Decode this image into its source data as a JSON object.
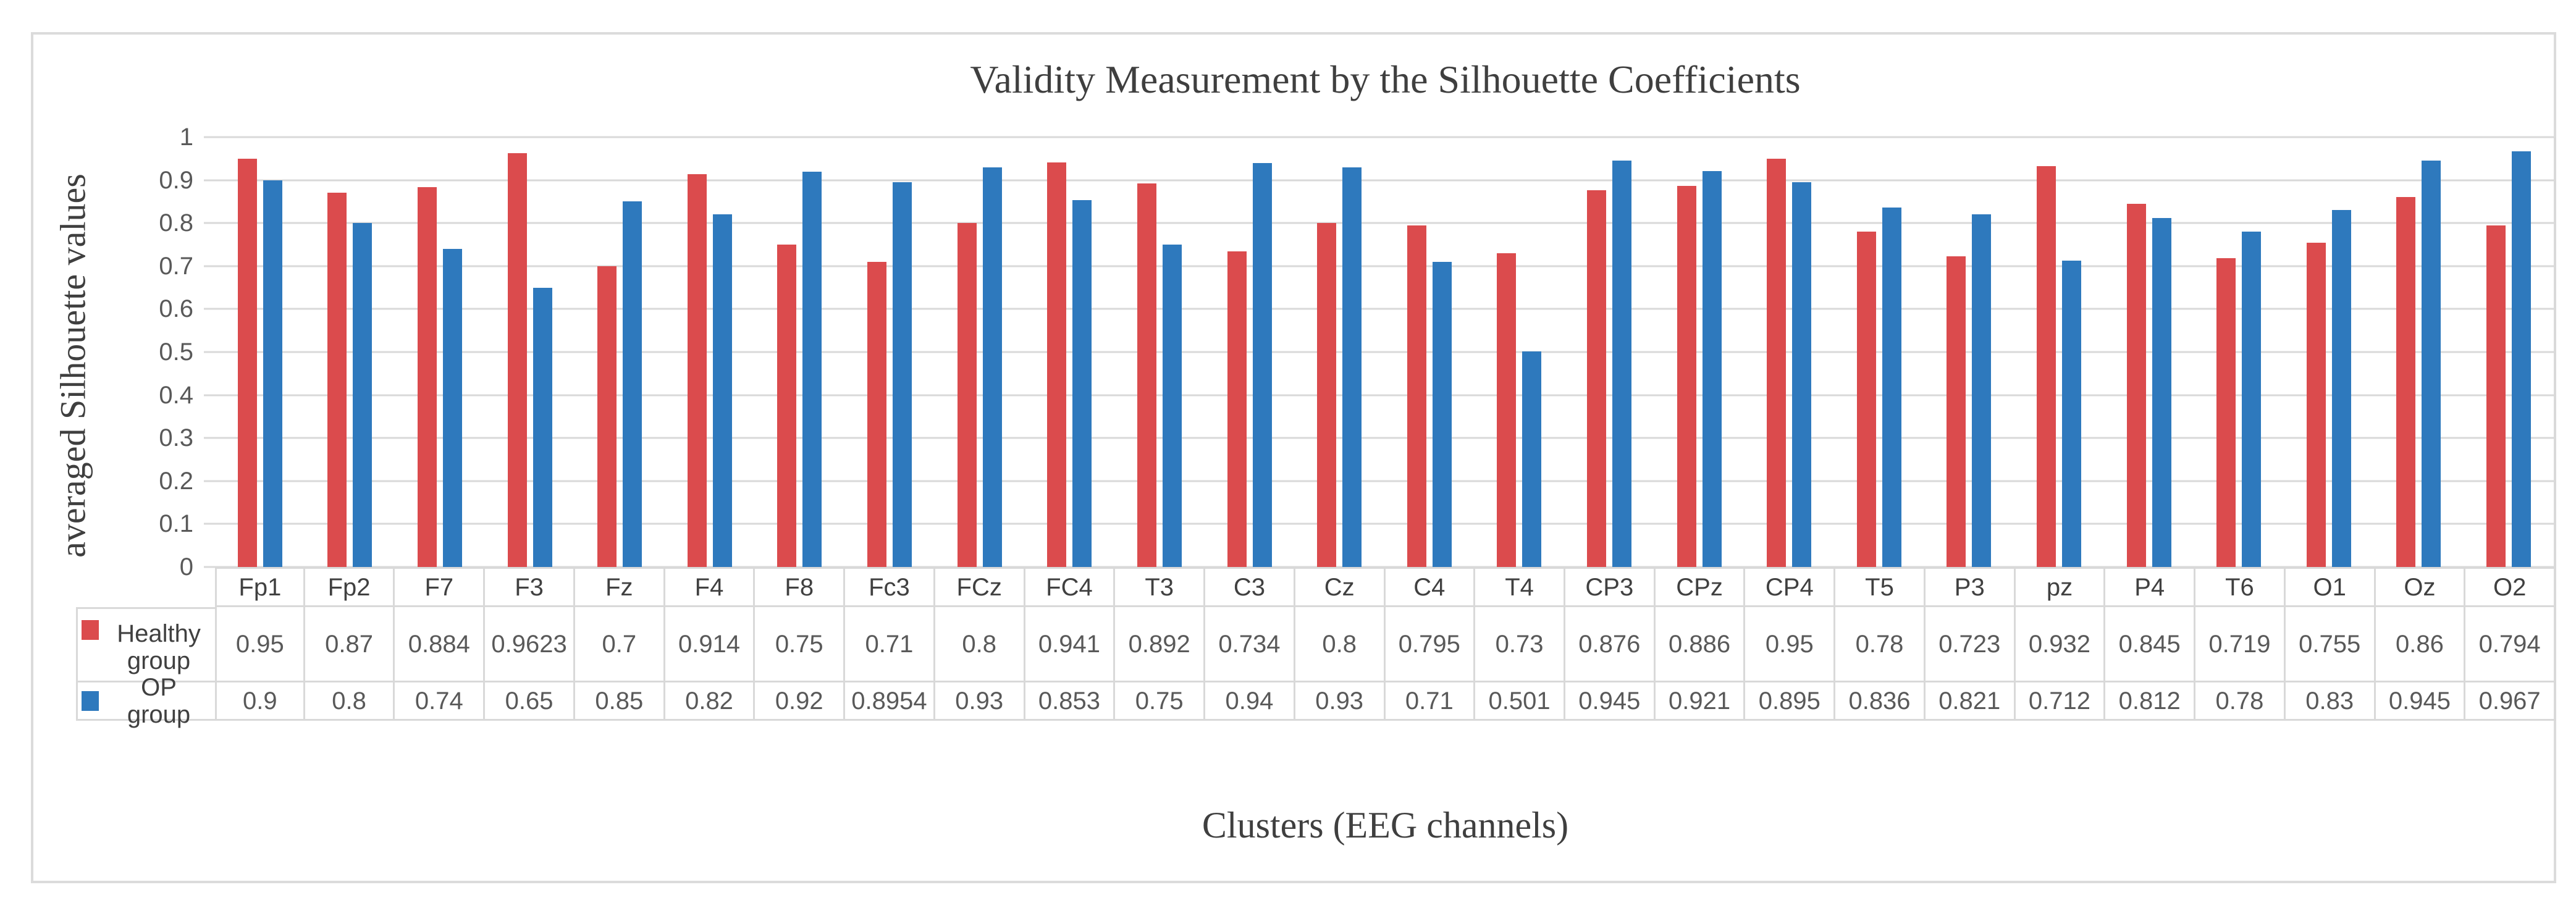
{
  "chart_data": {
    "type": "bar",
    "title": "Validity Measurement by the Silhouette Coefficients",
    "xlabel": "Clusters (EEG channels)",
    "ylabel": "averaged  Silhouette values",
    "ylim": [
      0,
      1
    ],
    "yticks": [
      "0",
      "0.1",
      "0.2",
      "0.3",
      "0.4",
      "0.5",
      "0.6",
      "0.7",
      "0.8",
      "0.9",
      "1"
    ],
    "grid": true,
    "legend_position": "table-left",
    "categories": [
      "Fp1",
      "Fp2",
      "F7",
      "F3",
      "Fz",
      "F4",
      "F8",
      "Fc3",
      "FCz",
      "FC4",
      "T3",
      "C3",
      "Cz",
      "C4",
      "T4",
      "CP3",
      "CPz",
      "CP4",
      "T5",
      "P3",
      "pz",
      "P4",
      "T6",
      "O1",
      "Oz",
      "O2"
    ],
    "series": [
      {
        "name": "Healthy group",
        "color": "#DB4B4D",
        "values": [
          0.95,
          0.87,
          0.884,
          0.9623,
          0.7,
          0.914,
          0.75,
          0.71,
          0.8,
          0.941,
          0.892,
          0.734,
          0.8,
          0.795,
          0.73,
          0.876,
          0.886,
          0.95,
          0.78,
          0.723,
          0.932,
          0.845,
          0.719,
          0.755,
          0.86,
          0.794
        ]
      },
      {
        "name": "OP group",
        "color": "#2E79BD",
        "values": [
          0.9,
          0.8,
          0.74,
          0.65,
          0.85,
          0.82,
          0.92,
          0.8954,
          0.93,
          0.853,
          0.75,
          0.94,
          0.93,
          0.71,
          0.501,
          0.945,
          0.921,
          0.895,
          0.836,
          0.821,
          0.712,
          0.812,
          0.78,
          0.83,
          0.945,
          0.967
        ]
      }
    ],
    "colors": {
      "gridline": "#D9D9D9",
      "table_border": "#D9D9D9",
      "tick_text": "#595959",
      "header_text": "#404040",
      "title_text": "#3F3F3F",
      "figure_border": "#DBDBDB"
    }
  }
}
